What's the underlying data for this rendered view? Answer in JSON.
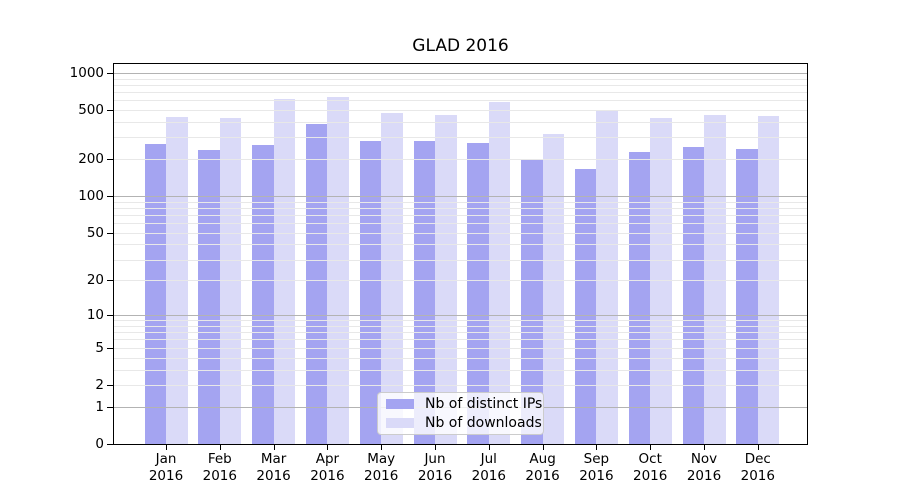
{
  "chart_data": {
    "type": "bar",
    "title": "GLAD 2016",
    "x_tick_months": [
      "Jan",
      "Feb",
      "Mar",
      "Apr",
      "May",
      "Jun",
      "Jul",
      "Aug",
      "Sep",
      "Oct",
      "Nov",
      "Dec"
    ],
    "x_tick_year": "2016",
    "y_ticks": [
      0,
      1,
      2,
      5,
      10,
      20,
      50,
      100,
      200,
      500,
      1000
    ],
    "y_scale": "log10(value+1)",
    "ylim": [
      0,
      1225
    ],
    "grid": "horizontal only; darker lines at 1,10,100,1000; faint minor lines between",
    "legend_position": "inside axes, lower center",
    "series": [
      {
        "name": "Nb of distinct IPs",
        "color": "#a4a4f1",
        "values": [
          265,
          235,
          260,
          385,
          280,
          280,
          270,
          197,
          166,
          228,
          250,
          240
        ]
      },
      {
        "name": "Nb of downloads",
        "color": "#dadaf8",
        "values": [
          440,
          430,
          610,
          635,
          470,
          455,
          580,
          320,
          490,
          430,
          455,
          445
        ]
      }
    ]
  },
  "colors": {
    "grid_major": "#b3b3b3",
    "grid_minor": "#e8e8e8",
    "axis_spine": "#000000",
    "legend_border": "#cccccc",
    "text": "#000000",
    "background": "#ffffff"
  }
}
